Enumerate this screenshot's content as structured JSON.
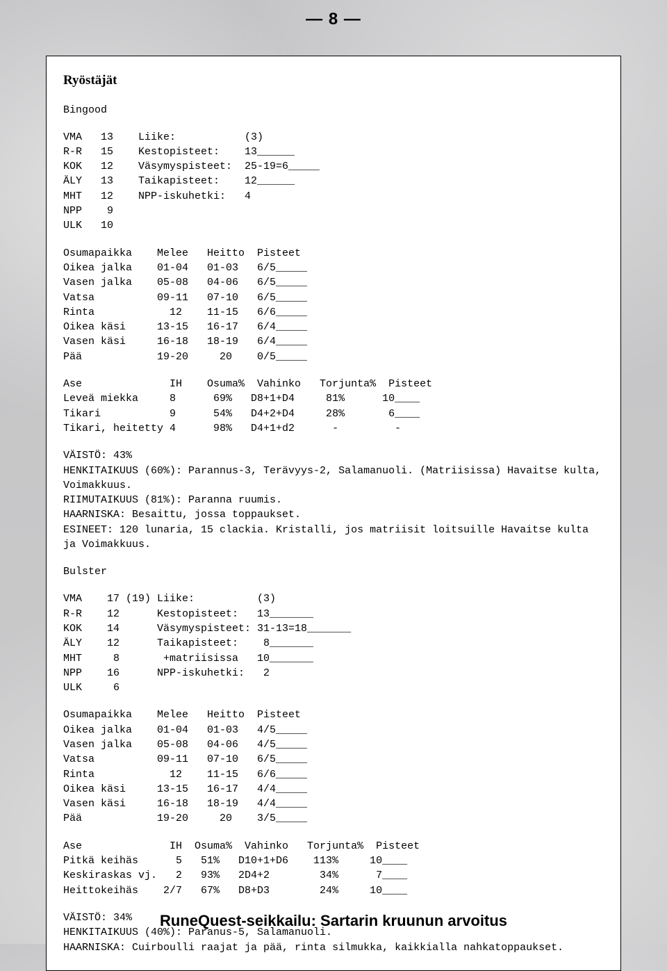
{
  "page_number": "— 8 —",
  "footer": "RuneQuest-seikkailu: Sartarin kruunun arvoitus",
  "title": "Ryöstäjät",
  "char1": {
    "name": "Bingood",
    "stats": "VMA   13    Liike:           (3)\nR-R   15    Kestopisteet:    13______\nKOK   12    Väsymyspisteet:  25-19=6_____\nÄLY   13    Taikapisteet:    12______\nMHT   12    NPP-iskuhetki:   4\nNPP    9\nULK   10",
    "hitloc": "Osumapaikka    Melee   Heitto  Pisteet\nOikea jalka    01-04   01-03   6/5_____\nVasen jalka    05-08   04-06   6/5_____\nVatsa          09-11   07-10   6/5_____\nRinta            12    11-15   6/6_____\nOikea käsi     13-15   16-17   6/4_____\nVasen käsi     16-18   18-19   6/4_____\nPää            19-20     20    0/5_____",
    "weapons": "Ase              IH    Osuma%  Vahinko   Torjunta%  Pisteet\nLeveä miekka     8      69%   D8+1+D4     81%      10____\nTikari           9      54%   D4+2+D4     28%       6____\nTikari, heitetty 4      98%   D4+1+d2      -         -",
    "notes": "VÄISTÖ: 43%\nHENKITAIKUUS (60%): Parannus-3, Terävyys-2, Salamanuoli. (Matriisissa) Havaitse kulta, Voimakkuus.\nRIIMUTAIKUUS (81%): Paranna ruumis.\nHAARNISKA: Besaittu, jossa toppaukset.\nESINEET: 120 lunaria, 15 clackia. Kristalli, jos matriisit loitsuille Havaitse kulta ja Voimakkuus."
  },
  "char2": {
    "name": "Bulster",
    "stats": "VMA    17 (19) Liike:          (3)\nR-R    12      Kestopisteet:   13_______\nKOK    14      Väsymyspisteet: 31-13=18_______\nÄLY    12      Taikapisteet:    8_______\nMHT     8       +matriisissa   10_______\nNPP    16      NPP-iskuhetki:   2\nULK     6",
    "hitloc": "Osumapaikka    Melee   Heitto  Pisteet\nOikea jalka    01-04   01-03   4/5_____\nVasen jalka    05-08   04-06   4/5_____\nVatsa          09-11   07-10   6/5_____\nRinta            12    11-15   6/6_____\nOikea käsi     13-15   16-17   4/4_____\nVasen käsi     16-18   18-19   4/4_____\nPää            19-20     20    3/5_____",
    "weapons": "Ase              IH  Osuma%  Vahinko   Torjunta%  Pisteet\nPitkä keihäs      5   51%   D10+1+D6    113%     10____\nKeskiraskas vj.   2   93%   2D4+2        34%      7____\nHeittokeihäs    2/7   67%   D8+D3        24%     10____",
    "notes": "VÄISTÖ: 34%\nHENKITAIKUUS (40%): Paranus-5, Salamanuoli.\nHAARNISKA: Cuirboulli raajat ja pää, rinta silmukka, kaikkialla nahkatoppaukset."
  }
}
